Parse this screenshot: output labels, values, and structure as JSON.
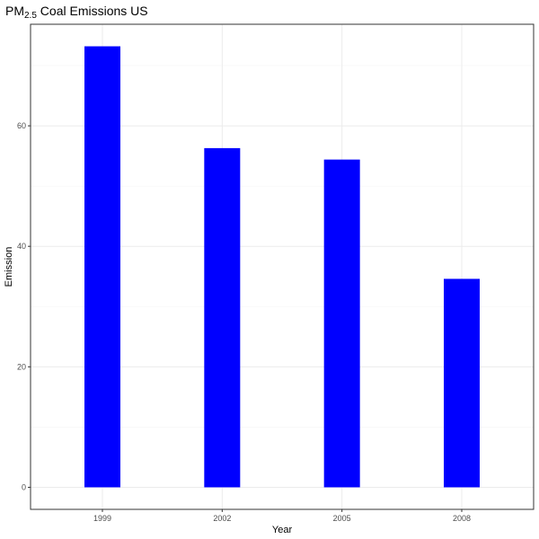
{
  "chart_data": {
    "type": "bar",
    "title_main": "PM",
    "title_sub": "2.5",
    "title_rest": " Coal Emissions US",
    "xlabel": "Year",
    "ylabel": "Emission",
    "categories": [
      "1999",
      "2002",
      "2005",
      "2008"
    ],
    "values": [
      73.2,
      56.3,
      54.4,
      34.6
    ],
    "yticks": [
      0,
      20,
      40,
      60
    ],
    "ytick_labels": [
      "0",
      "20",
      "40",
      "60"
    ],
    "ylim": [
      -3.66,
      76.86
    ],
    "grid": true,
    "legend": "none",
    "bar_color": "#0000ff",
    "grid_major_color": "#ebebeb",
    "grid_minor_color": "#f5f5f5",
    "panel_border_color": "#333333"
  }
}
